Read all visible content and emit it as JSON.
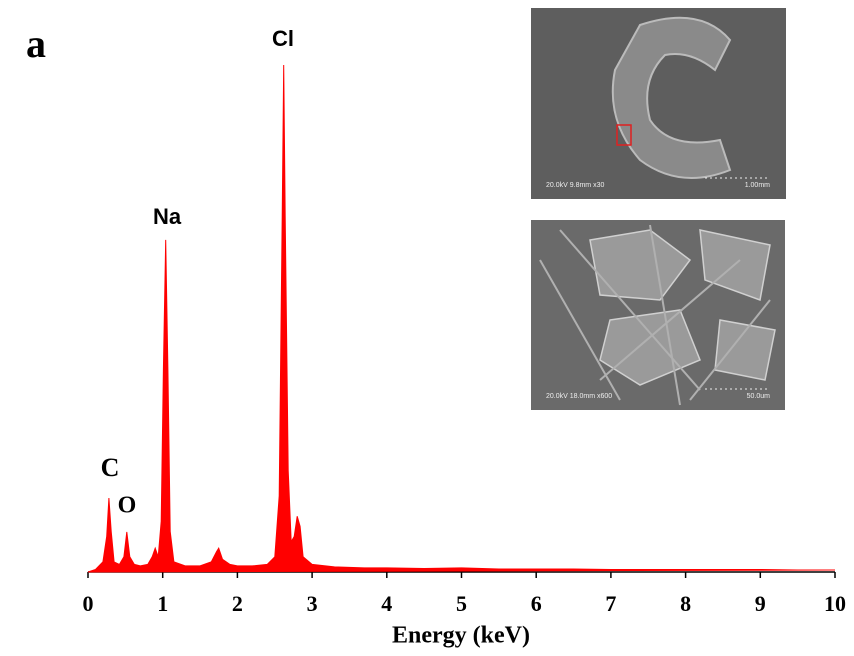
{
  "chart_data": {
    "type": "area",
    "panel_label": "a",
    "xlabel": "Energy (keV)",
    "color": "#ff0000",
    "xlim": [
      0,
      10
    ],
    "xticks": [
      0,
      1,
      2,
      3,
      4,
      5,
      6,
      7,
      8,
      9,
      10
    ],
    "ylim": [
      0,
      100
    ],
    "annotations": [
      "C",
      "O",
      "Na",
      "Cl"
    ],
    "x": [
      0,
      0.1,
      0.2,
      0.25,
      0.28,
      0.31,
      0.35,
      0.42,
      0.48,
      0.52,
      0.56,
      0.62,
      0.7,
      0.8,
      0.86,
      0.9,
      0.94,
      0.98,
      1.01,
      1.04,
      1.07,
      1.1,
      1.15,
      1.3,
      1.5,
      1.65,
      1.72,
      1.75,
      1.8,
      1.9,
      2.0,
      2.2,
      2.4,
      2.5,
      2.56,
      2.6,
      2.62,
      2.64,
      2.68,
      2.72,
      2.76,
      2.8,
      2.84,
      2.88,
      3.0,
      3.3,
      3.7,
      4,
      4.5,
      5,
      5.5,
      6,
      6.5,
      7,
      7.5,
      8,
      8.5,
      9,
      9.5,
      10
    ],
    "values": [
      0,
      0.5,
      2,
      7,
      14.6,
      8,
      2,
      1.5,
      3,
      7.9,
      3,
      1.5,
      1.2,
      1.5,
      3,
      4.7,
      3,
      10,
      40,
      65.5,
      40,
      8,
      2,
      1.2,
      1.2,
      2,
      4,
      4.7,
      2.5,
      1.5,
      1.2,
      1.2,
      1.5,
      3,
      15,
      70,
      100,
      70,
      20,
      6,
      7,
      11,
      9,
      3,
      1.5,
      1,
      0.8,
      0.8,
      0.7,
      0.8,
      0.6,
      0.6,
      0.6,
      0.5,
      0.5,
      0.5,
      0.5,
      0.5,
      0.4,
      0.4
    ],
    "insets": [
      {
        "caption": "20.0kV 9.8mm x30",
        "scale_bar": "1.00mm"
      },
      {
        "caption": "20.0kV 18.0mm x600",
        "scale_bar": "50.0um"
      }
    ]
  }
}
